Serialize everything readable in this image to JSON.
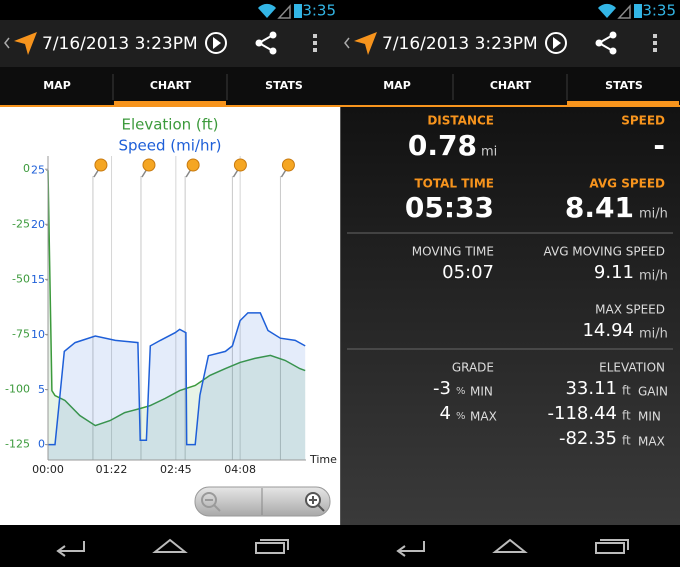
{
  "screens": [
    {
      "time": "3:35",
      "title": "7/16/2013 3:23PM",
      "tabs": [
        "MAP",
        "CHART",
        "STATS"
      ],
      "selected": 1
    },
    {
      "time": "3:35",
      "title": "7/16/2013 3:23PM",
      "tabs": [
        "MAP",
        "CHART",
        "STATS"
      ],
      "selected": 2
    }
  ],
  "chart_data": {
    "type": "line",
    "series": [
      {
        "name": "Elevation (ft)",
        "color": "#3c9a3c",
        "x": [
          0,
          5,
          9,
          22,
          41,
          61,
          80,
          99,
          119,
          132,
          151,
          170,
          190,
          209,
          229,
          248,
          267,
          287,
          306,
          325,
          332
        ],
        "values": [
          -0.5,
          -100.5,
          -102.7,
          -105,
          -111.8,
          -116.4,
          -114.1,
          -110.5,
          -108.6,
          -107.3,
          -104.1,
          -100.5,
          -98.2,
          -93.6,
          -90.5,
          -87.7,
          -85.9,
          -84.5,
          -86.8,
          -90.5,
          -91.4
        ]
      },
      {
        "name": "Speed (mi/hr)",
        "color": "#1e5fd8",
        "axis": "y2",
        "x": [
          0,
          9,
          16,
          21,
          35,
          61,
          87,
          116,
          119,
          127,
          132,
          145,
          164,
          170,
          178,
          179,
          190,
          196,
          207,
          229,
          238,
          248,
          258,
          274,
          284,
          300,
          319,
          332
        ],
        "values": [
          0,
          0,
          4.9,
          8.5,
          9.3,
          9.9,
          9.5,
          9.3,
          0.4,
          0.4,
          9,
          9.5,
          10.2,
          10.5,
          10.2,
          0,
          0,
          4.5,
          8.1,
          8.5,
          9,
          11.3,
          12,
          12,
          10.4,
          9.7,
          9.5,
          9
        ]
      }
    ],
    "xlabel": "Time",
    "xlim": [
      0,
      333
    ],
    "xticks": [
      {
        "value": 0,
        "label": "00:00"
      },
      {
        "value": 82,
        "label": "01:22"
      },
      {
        "value": 165,
        "label": "02:45"
      },
      {
        "value": 248,
        "label": "04:08"
      }
    ],
    "ylim": [
      -132,
      6
    ],
    "yticks": [
      0,
      -25,
      -50,
      -75,
      -100,
      -125
    ],
    "y2lim": [
      -1.4,
      26.3
    ],
    "y2ticks": [
      25,
      20,
      15,
      10,
      5,
      0
    ],
    "markers": [
      58,
      120,
      177,
      238,
      300
    ],
    "grid": true
  },
  "stats": {
    "distance": {
      "label": "DISTANCE",
      "value": "0.78",
      "unit": "mi"
    },
    "speed": {
      "label": "SPEED",
      "value": "-"
    },
    "total_time": {
      "label": "TOTAL TIME",
      "value": "05:33"
    },
    "avg_speed": {
      "label": "AVG SPEED",
      "value": "8.41",
      "unit": "mi/h"
    },
    "moving_time": {
      "label": "MOVING TIME",
      "value": "05:07"
    },
    "avg_moving_speed": {
      "label": "AVG MOVING SPEED",
      "value": "9.11",
      "unit": "mi/h"
    },
    "max_speed": {
      "label": "MAX SPEED",
      "value": "14.94",
      "unit": "mi/h"
    },
    "grade": {
      "label": "GRADE",
      "rows": [
        {
          "value": "-3",
          "unit": "%",
          "label": "MIN"
        },
        {
          "value": "4",
          "unit": "%",
          "label": "MAX"
        }
      ]
    },
    "elevation": {
      "label": "ELEVATION",
      "rows": [
        {
          "value": "33.11",
          "unit": "ft",
          "label": "GAIN"
        },
        {
          "value": "-118.44",
          "unit": "ft",
          "label": "MIN"
        },
        {
          "value": "-82.35",
          "unit": "ft",
          "label": "MAX"
        }
      ]
    }
  }
}
